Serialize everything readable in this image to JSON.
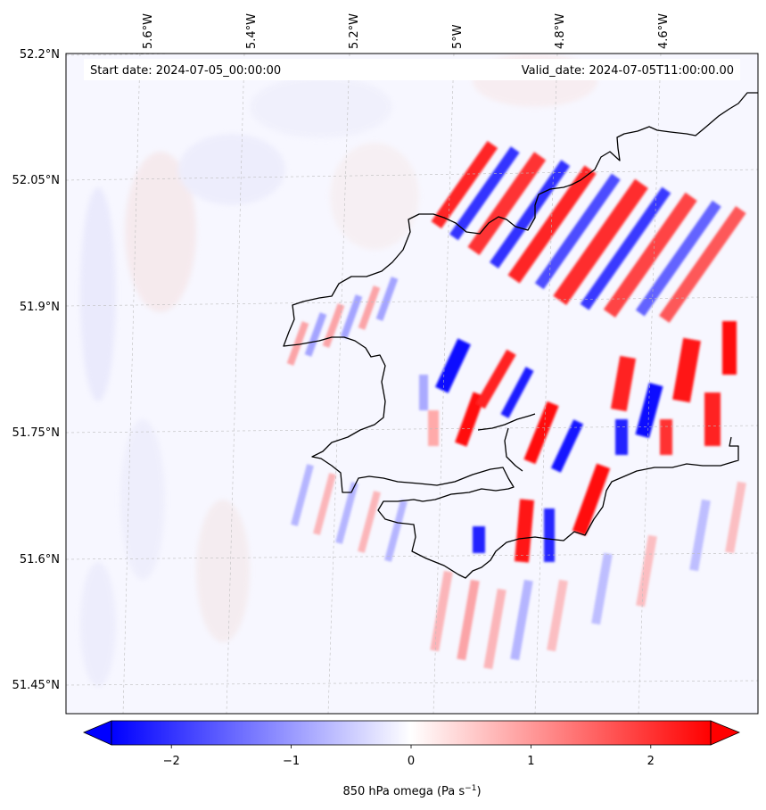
{
  "header": {
    "start_date": "Start date: 2024-07-05_00:00:00",
    "valid_date": "Valid_date: 2024-07-05T11:00:00.00"
  },
  "axes": {
    "lon_ticks": [
      "5.6°W",
      "5.4°W",
      "5.2°W",
      "5°W",
      "4.8°W",
      "4.6°W"
    ],
    "lat_ticks": [
      "52.2°N",
      "52.05°N",
      "51.9°N",
      "51.75°N",
      "51.6°N",
      "51.45°N"
    ]
  },
  "colorbar": {
    "ticks": [
      "−2",
      "−1",
      "0",
      "1",
      "2"
    ],
    "tick_values": [
      -2,
      -1,
      0,
      1,
      2
    ],
    "range": [
      -2.5,
      2.5
    ],
    "label": "850 hPa omega (Pa s",
    "label_sup": "−1",
    "label_end": ")",
    "colors": {
      "negative": "#0000ff",
      "zero": "#ffffff",
      "positive": "#ff0000"
    }
  },
  "map": {
    "grid": true,
    "field": "850 hPa omega",
    "coastline_color": "#000000"
  }
}
